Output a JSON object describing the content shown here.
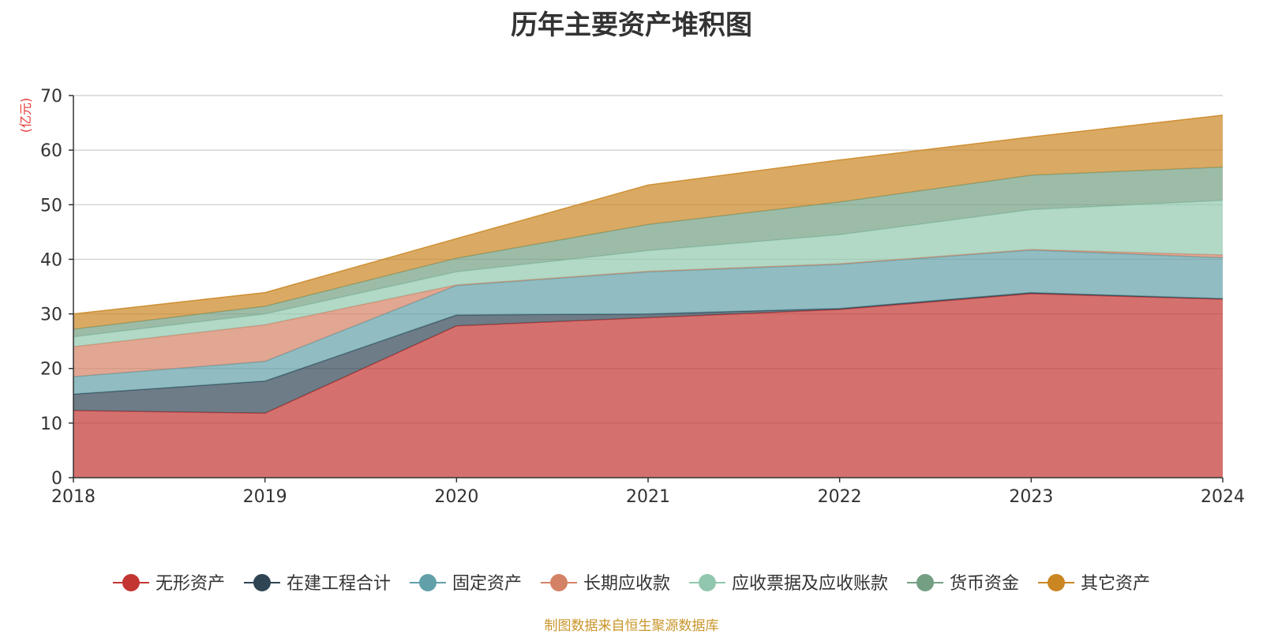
{
  "chart_data": {
    "type": "area",
    "title": "历年主要资产堆积图",
    "ylabel": "(亿元)",
    "xlabel": "",
    "x": [
      "2018",
      "2019",
      "2020",
      "2021",
      "2022",
      "2023",
      "2024"
    ],
    "ylim": [
      0,
      70
    ],
    "yticks": [
      "0",
      "10",
      "20",
      "30",
      "40",
      "50",
      "60",
      "70"
    ],
    "stacked": true,
    "grid": true,
    "legend_position": "bottom",
    "series": [
      {
        "name": "无形资产",
        "color": "#c23531",
        "values": [
          12.3,
          11.8,
          27.8,
          29.3,
          30.8,
          33.7,
          32.7
        ]
      },
      {
        "name": "在建工程合计",
        "color": "#2f4554",
        "values": [
          3.0,
          5.9,
          2.0,
          0.7,
          0.2,
          0.2,
          0.1
        ]
      },
      {
        "name": "固定资产",
        "color": "#61a0a8",
        "values": [
          3.2,
          3.6,
          5.4,
          7.7,
          8.1,
          7.8,
          7.5
        ]
      },
      {
        "name": "长期应收款",
        "color": "#d48265",
        "values": [
          5.5,
          6.7,
          0.1,
          0.1,
          0.1,
          0.1,
          0.5
        ]
      },
      {
        "name": "应收票据及应收账款",
        "color": "#91c7ae",
        "values": [
          1.8,
          2.0,
          2.4,
          3.8,
          5.3,
          7.3,
          10.0
        ]
      },
      {
        "name": "货币资金",
        "color": "#749f83",
        "values": [
          1.4,
          1.4,
          2.5,
          4.8,
          6.0,
          6.3,
          6.1
        ]
      },
      {
        "name": "其它资产",
        "color": "#ca8622",
        "values": [
          2.8,
          2.5,
          3.6,
          7.2,
          7.7,
          7.0,
          9.5
        ]
      }
    ]
  },
  "source_note": "制图数据来自恒生聚源数据库"
}
